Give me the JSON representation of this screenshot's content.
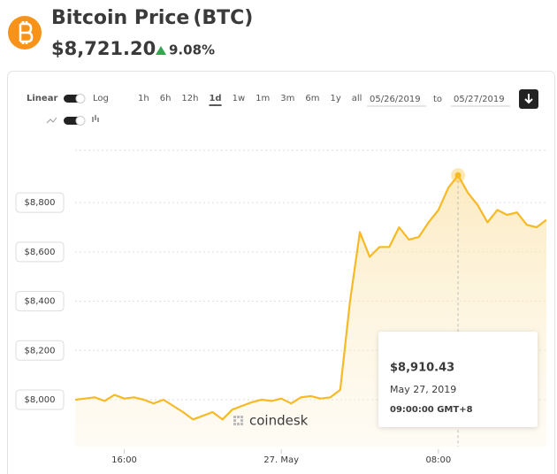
{
  "header": {
    "title": "Bitcoin Price",
    "symbol": "(BTC)",
    "price": "$8,721.20",
    "change": "9.08%"
  },
  "controls": {
    "scales": [
      "Linear",
      "Log"
    ],
    "ranges": [
      "1h",
      "6h",
      "12h",
      "1d",
      "1w",
      "1m",
      "3m",
      "6m",
      "1y",
      "all"
    ],
    "selected_range": "1d",
    "date_from": "05/26/2019",
    "date_sep": "to",
    "date_to": "05/27/2019"
  },
  "chart_data": {
    "type": "line",
    "color": "#f7b924",
    "watermark": "coindesk",
    "x": [
      13.5,
      14,
      14.5,
      15,
      15.5,
      16,
      16.5,
      17,
      17.5,
      18,
      18.5,
      19,
      19.5,
      20,
      20.5,
      21,
      21.5,
      22,
      22.5,
      23,
      23.5,
      24,
      24.5,
      25,
      25.5,
      26,
      26.5,
      27,
      27.5,
      28,
      28.5,
      29,
      29.5,
      30,
      30.5,
      31,
      31.5,
      32,
      32.5,
      33,
      33.5,
      34,
      34.5,
      35,
      35.5,
      36,
      36.5,
      37,
      37.5
    ],
    "values": [
      8000,
      8005,
      8010,
      7995,
      8020,
      8005,
      8010,
      8000,
      7985,
      8000,
      7975,
      7950,
      7920,
      7935,
      7950,
      7920,
      7960,
      7975,
      7990,
      8000,
      7995,
      8005,
      7985,
      8010,
      8015,
      8005,
      8010,
      8040,
      8400,
      8680,
      8580,
      8620,
      8620,
      8700,
      8650,
      8660,
      8720,
      8770,
      8860,
      8910.43,
      8840,
      8790,
      8720,
      8770,
      8750,
      8760,
      8710,
      8700,
      8730
    ],
    "xlim": [
      13.5,
      37.5
    ],
    "xticks": [
      {
        "value": 16,
        "label": "16:00"
      },
      {
        "value": 24,
        "label": "27. May"
      },
      {
        "value": 32,
        "label": "08:00"
      }
    ],
    "ylim": [
      7810,
      9012
    ],
    "yticks": [
      {
        "value": 8000,
        "label": "$8,000"
      },
      {
        "value": 8200,
        "label": "$8,200"
      },
      {
        "value": 8400,
        "label": "$8,400"
      },
      {
        "value": 8600,
        "label": "$8,600"
      },
      {
        "value": 8800,
        "label": "$8,800"
      }
    ],
    "grid": true,
    "tooltip": {
      "index": 39,
      "value_label": "$8,910.43",
      "date": "May 27, 2019",
      "time": "09:00:00 GMT+8"
    }
  }
}
